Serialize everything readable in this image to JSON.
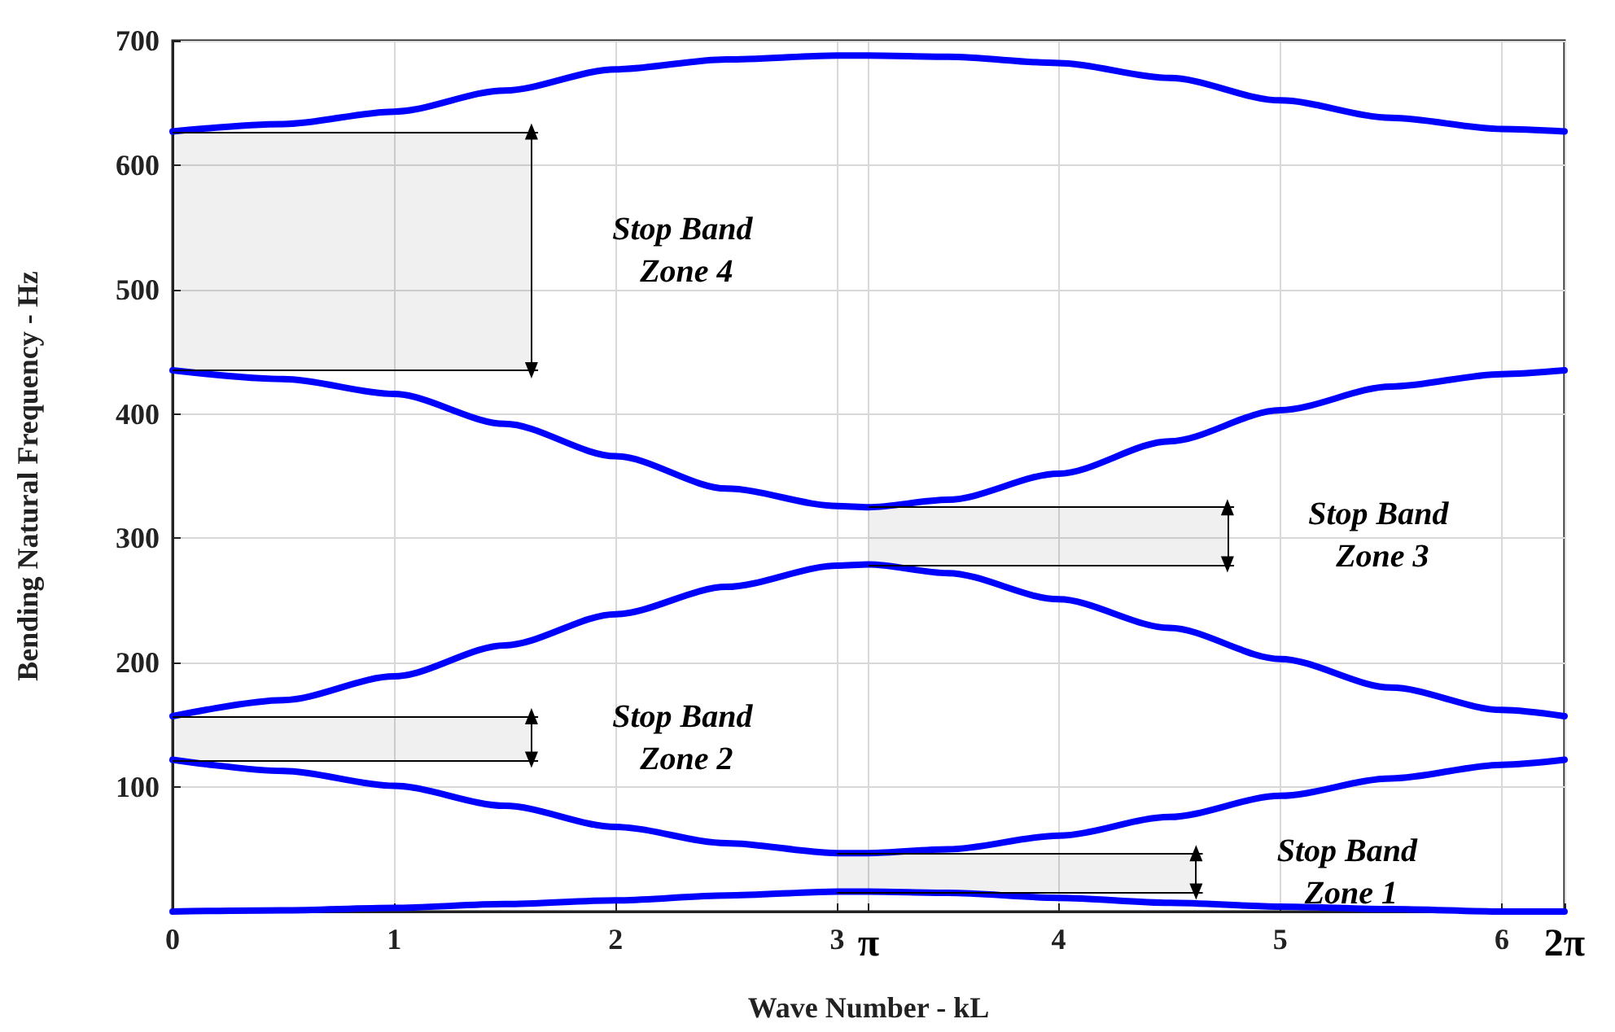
{
  "chart_data": {
    "type": "line",
    "xlabel": "Wave Number - kL",
    "ylabel": "Bending Natural Frequency - Hz",
    "x": [
      0,
      0.5,
      1,
      1.5,
      2,
      2.5,
      3,
      3.1416,
      3.5,
      4,
      4.5,
      5,
      5.5,
      6,
      6.2832
    ],
    "series": [
      {
        "color": "#0000ff",
        "values": [
          0,
          1,
          3,
          6,
          9,
          13,
          16,
          16,
          15,
          11,
          7,
          4,
          2,
          0,
          0
        ]
      },
      {
        "color": "#0000ff",
        "values": [
          122,
          113,
          101,
          85,
          68,
          55,
          47,
          47,
          50,
          61,
          76,
          93,
          107,
          118,
          122
        ]
      },
      {
        "color": "#0000ff",
        "values": [
          157,
          170,
          189,
          214,
          239,
          261,
          278,
          279,
          272,
          251,
          228,
          203,
          180,
          162,
          157
        ]
      },
      {
        "color": "#0000ff",
        "values": [
          435,
          428,
          416,
          392,
          366,
          340,
          326,
          325,
          331,
          352,
          378,
          403,
          422,
          432,
          435
        ]
      },
      {
        "color": "#0000ff",
        "values": [
          627,
          633,
          643,
          660,
          677,
          685,
          688,
          688,
          687,
          682,
          670,
          652,
          638,
          629,
          627
        ]
      }
    ],
    "xlim": [
      0,
      6.2832
    ],
    "xticks": [
      0,
      1,
      2,
      3,
      {
        "value": 3.1416,
        "label": "π"
      },
      4,
      5,
      6,
      {
        "value": 6.2832,
        "label": "2π"
      }
    ],
    "ylim": [
      0,
      700
    ],
    "yticks": [
      100,
      200,
      300,
      400,
      500,
      600,
      700
    ],
    "bands": [
      {
        "axis": "y",
        "from": 16,
        "to": 47,
        "label": "Stop Band Zone 1",
        "color": "#000000"
      },
      {
        "axis": "y",
        "from": 122,
        "to": 157,
        "label": "Stop Band Zone 2",
        "color": "#000000"
      },
      {
        "axis": "y",
        "from": 279,
        "to": 325,
        "label": "Stop Band Zone 3",
        "color": "#000000"
      },
      {
        "axis": "y",
        "from": 435,
        "to": 627,
        "label": "Stop Band Zone 4",
        "color": "#000000"
      }
    ],
    "grid": true,
    "marker": "none",
    "line_style": "solid"
  }
}
